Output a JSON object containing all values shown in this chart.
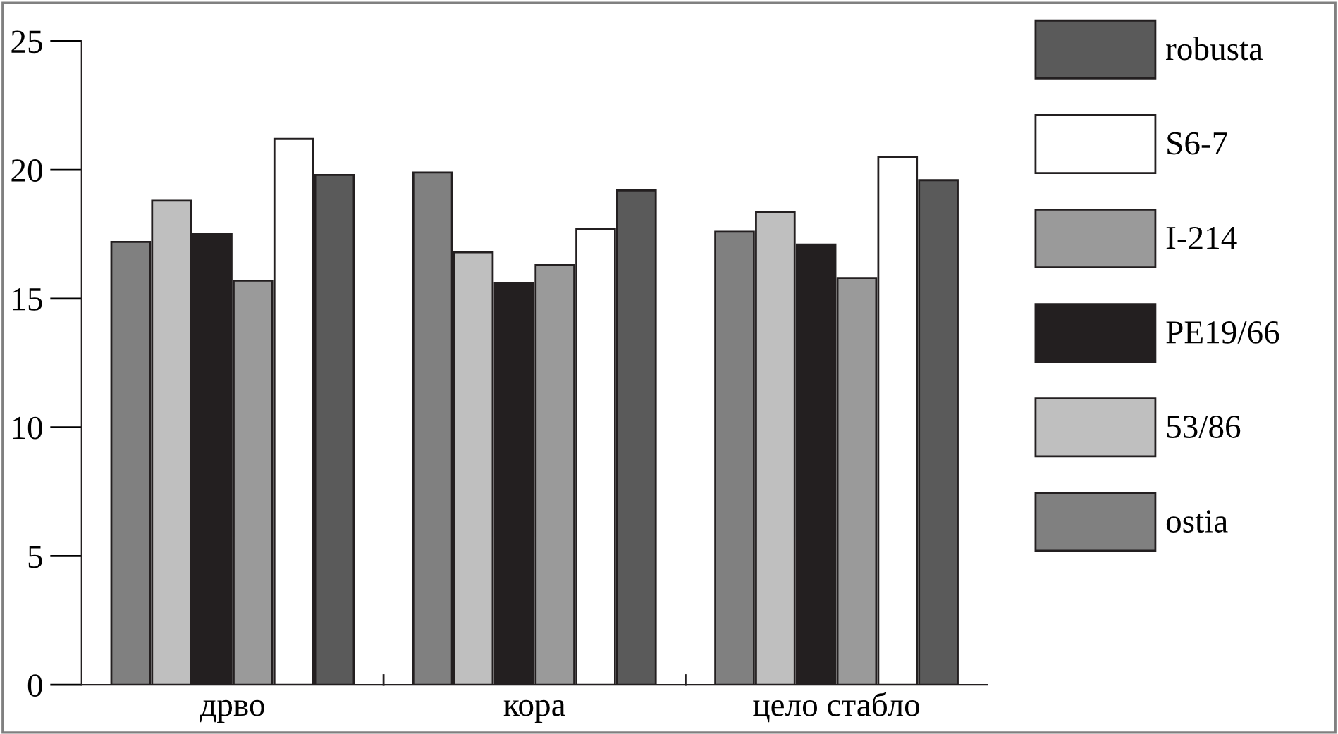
{
  "chart_data": {
    "type": "bar",
    "categories": [
      "дрво",
      "кора",
      "цело стабло"
    ],
    "series": [
      {
        "name": "ostia",
        "color": "#808080",
        "values": [
          17.2,
          19.9,
          17.6
        ]
      },
      {
        "name": "53/86",
        "color": "#bfbfbf",
        "values": [
          18.8,
          16.8,
          18.35
        ]
      },
      {
        "name": "PE19/66",
        "color": "#231f20",
        "values": [
          17.5,
          15.6,
          17.1
        ]
      },
      {
        "name": "I-214",
        "color": "#9a9a9a",
        "values": [
          15.7,
          16.3,
          15.8
        ]
      },
      {
        "name": "S6-7",
        "color": "#ffffff",
        "values": [
          21.2,
          17.7,
          20.5
        ]
      },
      {
        "name": "robusta",
        "color": "#5a5a5a",
        "values": [
          19.8,
          19.2,
          19.6
        ]
      }
    ],
    "ylim": [
      0,
      25
    ],
    "yticks": [
      0,
      5,
      10,
      15,
      20,
      25
    ],
    "grid": false,
    "legend": "right"
  }
}
